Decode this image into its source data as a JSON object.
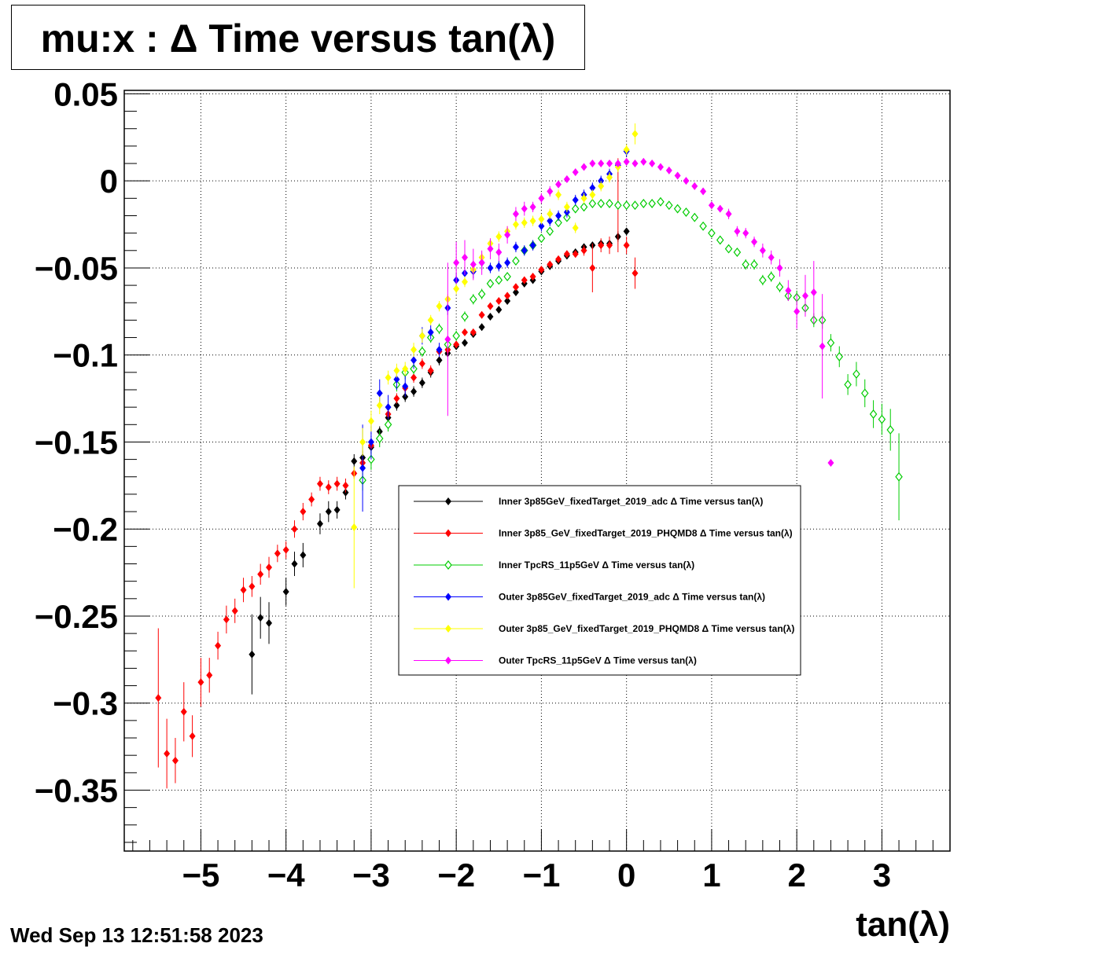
{
  "title": "mu:x : Δ Time versus tan(λ)",
  "datestamp": "Wed Sep 13 12:51:58 2023",
  "chart_data": {
    "type": "scatter",
    "title": "mu:x : Δ Time versus tan(λ)",
    "xlabel": "tan(λ)",
    "ylabel": "",
    "xlim": [
      -5.9,
      3.8
    ],
    "ylim": [
      -0.385,
      0.052
    ],
    "x_ticks": [
      -5,
      -4,
      -3,
      -2,
      -1,
      0,
      1,
      2,
      3
    ],
    "x_tick_labels": [
      "−5",
      "−4",
      "−3",
      "−2",
      "−1",
      "0",
      "1",
      "2",
      "3"
    ],
    "y_ticks": [
      0.05,
      0,
      -0.05,
      -0.1,
      -0.15,
      -0.2,
      -0.25,
      -0.3,
      -0.35
    ],
    "y_tick_labels": [
      "0.05",
      "0",
      "−0.05",
      "−0.1",
      "−0.15",
      "−0.2",
      "−0.25",
      "−0.3",
      "−0.35"
    ],
    "grid": true,
    "legend_position": "center-right",
    "series": [
      {
        "name": "Inner  3p85GeV_fixedTarget_2019_adc Δ Time versus tan(λ)",
        "color": "#000000",
        "marker": "filled-diamond",
        "x": [
          -4.4,
          -4.3,
          -4.2,
          -4.0,
          -3.9,
          -3.8,
          -3.6,
          -3.5,
          -3.4,
          -3.3,
          -3.2,
          -3.1,
          -3.0,
          -2.9,
          -2.8,
          -2.7,
          -2.6,
          -2.5,
          -2.4,
          -2.3,
          -2.2,
          -2.1,
          -2.0,
          -1.9,
          -1.8,
          -1.7,
          -1.6,
          -1.5,
          -1.4,
          -1.3,
          -1.2,
          -1.1,
          -1.0,
          -0.9,
          -0.8,
          -0.7,
          -0.6,
          -0.5,
          -0.4,
          -0.3,
          -0.2,
          -0.1,
          0.0
        ],
        "y": [
          -0.272,
          -0.251,
          -0.254,
          -0.236,
          -0.22,
          -0.215,
          -0.197,
          -0.19,
          -0.189,
          -0.179,
          -0.161,
          -0.159,
          -0.153,
          -0.144,
          -0.136,
          -0.129,
          -0.124,
          -0.121,
          -0.116,
          -0.11,
          -0.103,
          -0.099,
          -0.095,
          -0.093,
          -0.088,
          -0.084,
          -0.078,
          -0.074,
          -0.069,
          -0.064,
          -0.059,
          -0.057,
          -0.052,
          -0.049,
          -0.046,
          -0.043,
          -0.041,
          -0.038,
          -0.037,
          -0.036,
          -0.036,
          -0.032,
          -0.029
        ],
        "err": [
          0.023,
          0.012,
          0.012,
          0.008,
          0.007,
          0.007,
          0.006,
          0.006,
          0.005,
          0.004,
          0.004,
          0.004,
          0.004,
          0.003,
          0.003,
          0.003,
          0.003,
          0.003,
          0.003,
          0.003,
          0.003,
          0.002,
          0.002,
          0.002,
          0.002,
          0.002,
          0.002,
          0.002,
          0.002,
          0.002,
          0.002,
          0.002,
          0.002,
          0.002,
          0.002,
          0.002,
          0.002,
          0.002,
          0.002,
          0.002,
          0.002,
          0.003,
          0.002
        ]
      },
      {
        "name": "Inner  3p85_GeV_fixedTarget_2019_PHQMD8 Δ Time versus tan(λ)",
        "color": "#ff0000",
        "marker": "filled-diamond",
        "x": [
          -5.5,
          -5.4,
          -5.3,
          -5.2,
          -5.1,
          -5.0,
          -4.9,
          -4.8,
          -4.7,
          -4.6,
          -4.5,
          -4.4,
          -4.3,
          -4.2,
          -4.1,
          -4.0,
          -3.9,
          -3.8,
          -3.7,
          -3.6,
          -3.5,
          -3.4,
          -3.3,
          -3.2,
          -3.1,
          -3.0,
          -2.9,
          -2.8,
          -2.7,
          -2.6,
          -2.5,
          -2.4,
          -2.3,
          -2.2,
          -2.1,
          -2.0,
          -1.9,
          -1.8,
          -1.7,
          -1.6,
          -1.5,
          -1.4,
          -1.3,
          -1.2,
          -1.1,
          -1.0,
          -0.9,
          -0.8,
          -0.7,
          -0.6,
          -0.5,
          -0.4,
          -0.3,
          -0.2,
          -0.1,
          0.0,
          0.1
        ],
        "y": [
          -0.297,
          -0.329,
          -0.333,
          -0.305,
          -0.319,
          -0.288,
          -0.284,
          -0.267,
          -0.252,
          -0.247,
          -0.235,
          -0.233,
          -0.226,
          -0.222,
          -0.214,
          -0.212,
          -0.2,
          -0.19,
          -0.183,
          -0.174,
          -0.176,
          -0.174,
          -0.175,
          -0.168,
          -0.162,
          -0.152,
          -0.148,
          -0.134,
          -0.125,
          -0.119,
          -0.113,
          -0.105,
          -0.109,
          -0.098,
          -0.097,
          -0.094,
          -0.087,
          -0.087,
          -0.077,
          -0.072,
          -0.069,
          -0.066,
          -0.061,
          -0.057,
          -0.055,
          -0.051,
          -0.048,
          -0.045,
          -0.042,
          -0.042,
          -0.04,
          -0.05,
          -0.037,
          -0.037,
          -0.014,
          -0.037,
          -0.053
        ],
        "err": [
          0.04,
          0.02,
          0.013,
          0.017,
          0.012,
          0.014,
          0.01,
          0.008,
          0.008,
          0.007,
          0.007,
          0.006,
          0.006,
          0.006,
          0.005,
          0.005,
          0.005,
          0.005,
          0.004,
          0.004,
          0.004,
          0.004,
          0.004,
          0.003,
          0.003,
          0.003,
          0.003,
          0.003,
          0.003,
          0.003,
          0.003,
          0.003,
          0.003,
          0.003,
          0.003,
          0.002,
          0.002,
          0.002,
          0.002,
          0.002,
          0.002,
          0.002,
          0.002,
          0.002,
          0.002,
          0.002,
          0.002,
          0.002,
          0.002,
          0.002,
          0.003,
          0.014,
          0.004,
          0.005,
          0.027,
          0.005,
          0.009
        ]
      },
      {
        "name": "Inner  TpcRS_11p5GeV Δ Time versus tan(λ)",
        "color": "#00cc00",
        "marker": "open-diamond",
        "x": [
          -3.1,
          -3.0,
          -2.9,
          -2.8,
          -2.7,
          -2.6,
          -2.5,
          -2.4,
          -2.3,
          -2.2,
          -2.1,
          -2.0,
          -1.9,
          -1.8,
          -1.7,
          -1.6,
          -1.5,
          -1.4,
          -1.3,
          -1.2,
          -1.1,
          -1.0,
          -0.9,
          -0.8,
          -0.7,
          -0.6,
          -0.5,
          -0.4,
          -0.3,
          -0.2,
          -0.1,
          0.0,
          0.1,
          0.2,
          0.3,
          0.4,
          0.5,
          0.6,
          0.7,
          0.8,
          0.9,
          1.0,
          1.1,
          1.2,
          1.3,
          1.4,
          1.5,
          1.6,
          1.7,
          1.8,
          1.9,
          2.0,
          2.1,
          2.2,
          2.3,
          2.4,
          2.5,
          2.6,
          2.7,
          2.8,
          2.9,
          3.0,
          3.1,
          3.2
        ],
        "y": [
          -0.172,
          -0.16,
          -0.148,
          -0.14,
          -0.117,
          -0.11,
          -0.108,
          -0.098,
          -0.09,
          -0.085,
          -0.094,
          -0.089,
          -0.078,
          -0.068,
          -0.065,
          -0.059,
          -0.057,
          -0.055,
          -0.046,
          -0.04,
          -0.037,
          -0.033,
          -0.029,
          -0.024,
          -0.021,
          -0.016,
          -0.015,
          -0.013,
          -0.013,
          -0.013,
          -0.014,
          -0.014,
          -0.014,
          -0.013,
          -0.013,
          -0.012,
          -0.014,
          -0.016,
          -0.018,
          -0.021,
          -0.026,
          -0.03,
          -0.034,
          -0.039,
          -0.041,
          -0.048,
          -0.048,
          -0.057,
          -0.055,
          -0.061,
          -0.066,
          -0.067,
          -0.073,
          -0.08,
          -0.08,
          -0.093,
          -0.101,
          -0.117,
          -0.111,
          -0.122,
          -0.134,
          -0.137,
          -0.143,
          -0.17
        ],
        "err": [
          0.006,
          0.006,
          0.005,
          0.004,
          0.004,
          0.004,
          0.003,
          0.003,
          0.003,
          0.003,
          0.003,
          0.003,
          0.003,
          0.003,
          0.003,
          0.002,
          0.002,
          0.002,
          0.002,
          0.002,
          0.002,
          0.002,
          0.002,
          0.002,
          0.002,
          0.002,
          0.002,
          0.002,
          0.002,
          0.002,
          0.002,
          0.002,
          0.002,
          0.002,
          0.002,
          0.002,
          0.002,
          0.002,
          0.002,
          0.002,
          0.002,
          0.002,
          0.002,
          0.002,
          0.002,
          0.003,
          0.003,
          0.003,
          0.003,
          0.003,
          0.003,
          0.004,
          0.004,
          0.004,
          0.005,
          0.005,
          0.006,
          0.006,
          0.007,
          0.008,
          0.008,
          0.009,
          0.012,
          0.025
        ]
      },
      {
        "name": "Outer  3p85GeV_fixedTarget_2019_adc Δ Time versus tan(λ)",
        "color": "#0000ff",
        "marker": "filled-diamond",
        "x": [
          -3.1,
          -3.0,
          -2.9,
          -2.8,
          -2.7,
          -2.6,
          -2.5,
          -2.4,
          -2.3,
          -2.2,
          -2.1,
          -2.0,
          -1.9,
          -1.8,
          -1.7,
          -1.6,
          -1.5,
          -1.4,
          -1.3,
          -1.2,
          -1.1,
          -1.0,
          -0.9,
          -0.8,
          -0.7,
          -0.6,
          -0.5,
          -0.4,
          -0.3,
          -0.2,
          -0.1,
          0.0
        ],
        "y": [
          -0.165,
          -0.15,
          -0.122,
          -0.13,
          -0.114,
          -0.118,
          -0.103,
          -0.089,
          -0.087,
          -0.097,
          -0.073,
          -0.057,
          -0.053,
          -0.052,
          -0.047,
          -0.05,
          -0.049,
          -0.047,
          -0.038,
          -0.04,
          -0.037,
          -0.026,
          -0.023,
          -0.02,
          -0.018,
          -0.011,
          -0.008,
          -0.004,
          0.0,
          0.004,
          0.009,
          0.017
        ],
        "err": [
          0.025,
          0.01,
          0.008,
          0.007,
          0.006,
          0.006,
          0.005,
          0.005,
          0.004,
          0.004,
          0.004,
          0.004,
          0.004,
          0.004,
          0.004,
          0.003,
          0.003,
          0.003,
          0.003,
          0.003,
          0.003,
          0.003,
          0.003,
          0.003,
          0.003,
          0.003,
          0.003,
          0.003,
          0.003,
          0.003,
          0.003,
          0.003
        ]
      },
      {
        "name": "Outer  3p85_GeV_fixedTarget_2019_PHQMD8 Δ Time versus tan(λ)",
        "color": "#ffff00",
        "marker": "filled-diamond",
        "x": [
          -3.2,
          -3.1,
          -3.0,
          -2.9,
          -2.8,
          -2.7,
          -2.6,
          -2.5,
          -2.4,
          -2.3,
          -2.2,
          -2.1,
          -2.0,
          -1.9,
          -1.8,
          -1.7,
          -1.6,
          -1.5,
          -1.4,
          -1.3,
          -1.2,
          -1.1,
          -1.0,
          -0.9,
          -0.8,
          -0.7,
          -0.6,
          -0.5,
          -0.4,
          -0.3,
          -0.2,
          -0.1,
          0.0,
          0.1
        ],
        "y": [
          -0.199,
          -0.15,
          -0.138,
          -0.129,
          -0.113,
          -0.109,
          -0.108,
          -0.097,
          -0.089,
          -0.08,
          -0.072,
          -0.068,
          -0.062,
          -0.058,
          -0.051,
          -0.044,
          -0.036,
          -0.032,
          -0.029,
          -0.025,
          -0.024,
          -0.023,
          -0.022,
          -0.019,
          -0.008,
          -0.015,
          -0.027,
          -0.01,
          -0.008,
          -0.003,
          0.002,
          0.008,
          0.018,
          0.027
        ],
        "err": [
          0.035,
          0.008,
          0.006,
          0.005,
          0.004,
          0.004,
          0.004,
          0.004,
          0.004,
          0.003,
          0.003,
          0.003,
          0.003,
          0.003,
          0.003,
          0.003,
          0.003,
          0.003,
          0.003,
          0.003,
          0.003,
          0.003,
          0.003,
          0.003,
          0.003,
          0.003,
          0.003,
          0.003,
          0.003,
          0.003,
          0.003,
          0.003,
          0.003,
          0.006
        ]
      },
      {
        "name": "Outer  TpcRS_11p5GeV Δ Time versus tan(λ)",
        "color": "#ff00ff",
        "marker": "filled-diamond",
        "x": [
          -2.1,
          -2.0,
          -1.9,
          -1.8,
          -1.7,
          -1.6,
          -1.5,
          -1.4,
          -1.3,
          -1.2,
          -1.1,
          -1.0,
          -0.9,
          -0.8,
          -0.7,
          -0.6,
          -0.5,
          -0.4,
          -0.3,
          -0.2,
          -0.1,
          0.0,
          0.1,
          0.2,
          0.3,
          0.4,
          0.5,
          0.6,
          0.7,
          0.8,
          0.9,
          1.0,
          1.1,
          1.2,
          1.3,
          1.4,
          1.5,
          1.6,
          1.7,
          1.8,
          1.9,
          2.0,
          2.1,
          2.2,
          2.3,
          2.4
        ],
        "y": [
          -0.091,
          -0.047,
          -0.044,
          -0.048,
          -0.047,
          -0.039,
          -0.041,
          -0.031,
          -0.019,
          -0.016,
          -0.015,
          -0.01,
          -0.006,
          -0.002,
          0.001,
          0.005,
          0.008,
          0.01,
          0.01,
          0.01,
          0.01,
          0.011,
          0.01,
          0.011,
          0.01,
          0.008,
          0.006,
          0.003,
          0.0,
          -0.003,
          -0.006,
          -0.014,
          -0.016,
          -0.019,
          -0.029,
          -0.03,
          -0.035,
          -0.04,
          -0.044,
          -0.05,
          -0.063,
          -0.075,
          -0.066,
          -0.064,
          -0.095,
          -0.162
        ],
        "err": [
          0.044,
          0.012,
          0.01,
          0.009,
          0.007,
          0.006,
          0.005,
          0.005,
          0.004,
          0.004,
          0.003,
          0.003,
          0.003,
          0.002,
          0.002,
          0.002,
          0.002,
          0.002,
          0.002,
          0.002,
          0.002,
          0.002,
          0.002,
          0.002,
          0.002,
          0.002,
          0.002,
          0.002,
          0.002,
          0.002,
          0.002,
          0.002,
          0.002,
          0.003,
          0.003,
          0.003,
          0.003,
          0.004,
          0.004,
          0.005,
          0.006,
          0.01,
          0.012,
          0.018,
          0.03,
          0.0
        ]
      }
    ]
  }
}
